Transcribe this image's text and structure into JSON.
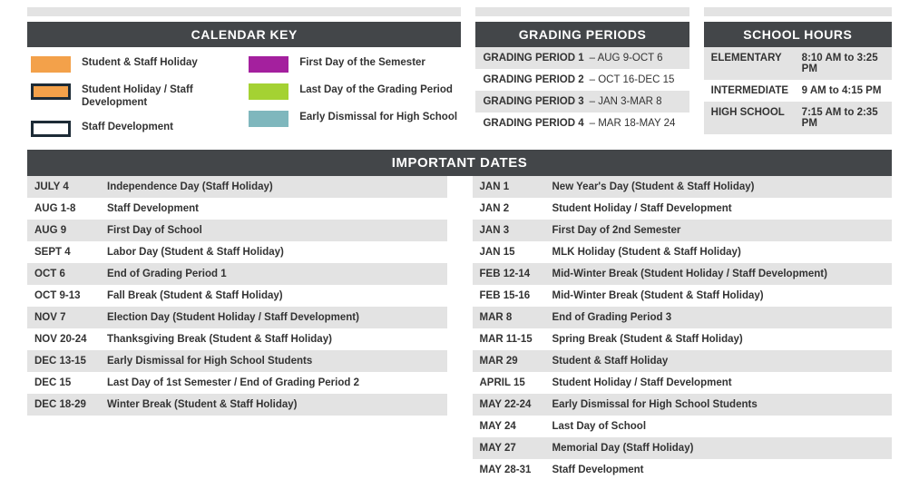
{
  "colors": {
    "header_bg": "#434649",
    "shade_bg": "#e3e3e3",
    "text": "#333333"
  },
  "calendar_key": {
    "title": "CALENDAR KEY",
    "left": [
      {
        "label": "Student & Staff Holiday",
        "fill": "#f3a14a",
        "border": "#f3a14a"
      },
      {
        "label": "Student Holiday / Staff Development",
        "fill": "#f3a14a",
        "border": "#1d2b36"
      },
      {
        "label": "Staff Development",
        "fill": "#ffffff",
        "border": "#1d2b36"
      }
    ],
    "right": [
      {
        "label": "First Day of the Semester",
        "fill": "#a4209e",
        "border": "#a4209e"
      },
      {
        "label": "Last Day of the Grading Period",
        "fill": "#a4d233",
        "border": "#a4d233"
      },
      {
        "label": "Early Dismissal for High School",
        "fill": "#7fb7bd",
        "border": "#7fb7bd"
      }
    ]
  },
  "grading_periods": {
    "title": "GRADING PERIODS",
    "rows": [
      {
        "label": "GRADING PERIOD 1",
        "range": " – AUG 9-OCT 6",
        "shade": true
      },
      {
        "label": "GRADING PERIOD 2",
        "range": " – OCT 16-DEC 15",
        "shade": false
      },
      {
        "label": "GRADING PERIOD 3",
        "range": " – JAN 3-MAR 8",
        "shade": true
      },
      {
        "label": "GRADING PERIOD 4",
        "range": " – MAR 18-MAY 24",
        "shade": false
      }
    ]
  },
  "school_hours": {
    "title": "SCHOOL HOURS",
    "rows": [
      {
        "level": "ELEMENTARY",
        "hours": "8:10 AM to 3:25 PM",
        "shade": true
      },
      {
        "level": "INTERMEDIATE",
        "hours": "9 AM to 4:15 PM",
        "shade": false
      },
      {
        "level": "HIGH SCHOOL",
        "hours": "7:15 AM to 2:35 PM",
        "shade": true
      }
    ]
  },
  "important_dates": {
    "title": "IMPORTANT DATES",
    "left": [
      {
        "date": "JULY 4",
        "desc": "Independence Day (Staff Holiday)",
        "shade": true
      },
      {
        "date": "AUG 1-8",
        "desc": "Staff Development",
        "shade": false
      },
      {
        "date": "AUG 9",
        "desc": "First Day of School",
        "shade": true
      },
      {
        "date": "SEPT 4",
        "desc": "Labor Day (Student & Staff Holiday)",
        "shade": false
      },
      {
        "date": "OCT 6",
        "desc": "End of Grading Period 1",
        "shade": true
      },
      {
        "date": "OCT 9-13",
        "desc": "Fall Break (Student & Staff Holiday)",
        "shade": false
      },
      {
        "date": "NOV 7",
        "desc": "Election Day (Student Holiday / Staff Development)",
        "shade": true
      },
      {
        "date": "NOV 20-24",
        "desc": "Thanksgiving Break (Student & Staff Holiday)",
        "shade": false
      },
      {
        "date": "DEC 13-15",
        "desc": "Early Dismissal for High School Students",
        "shade": true
      },
      {
        "date": "DEC 15",
        "desc": "Last Day of 1st Semester / End of Grading Period 2",
        "shade": false
      },
      {
        "date": "DEC 18-29",
        "desc": "Winter Break (Student & Staff Holiday)",
        "shade": true
      }
    ],
    "right": [
      {
        "date": "JAN 1",
        "desc": "New Year's Day (Student & Staff Holiday)",
        "shade": true
      },
      {
        "date": "JAN 2",
        "desc": "Student Holiday / Staff Development",
        "shade": false
      },
      {
        "date": "JAN 3",
        "desc": "First Day of 2nd Semester",
        "shade": true
      },
      {
        "date": "JAN 15",
        "desc": "MLK Holiday (Student & Staff Holiday)",
        "shade": false
      },
      {
        "date": "FEB 12-14",
        "desc": "Mid-Winter Break (Student Holiday / Staff Development)",
        "shade": true
      },
      {
        "date": "FEB 15-16",
        "desc": "Mid-Winter Break (Student & Staff Holiday)",
        "shade": false
      },
      {
        "date": "MAR 8",
        "desc": "End of Grading Period 3",
        "shade": true
      },
      {
        "date": "MAR 11-15",
        "desc": "Spring Break (Student & Staff Holiday)",
        "shade": false
      },
      {
        "date": "MAR 29",
        "desc": "Student & Staff Holiday",
        "shade": true
      },
      {
        "date": "APRIL 15",
        "desc": "Student Holiday / Staff Development",
        "shade": false
      },
      {
        "date": "MAY 22-24",
        "desc": "Early Dismissal for High School Students",
        "shade": true
      },
      {
        "date": "MAY 24",
        "desc": "Last Day of School",
        "shade": false
      },
      {
        "date": "MAY 27",
        "desc": "Memorial Day (Staff Holiday)",
        "shade": true
      },
      {
        "date": "MAY 28-31",
        "desc": "Staff Development",
        "shade": false
      }
    ]
  }
}
